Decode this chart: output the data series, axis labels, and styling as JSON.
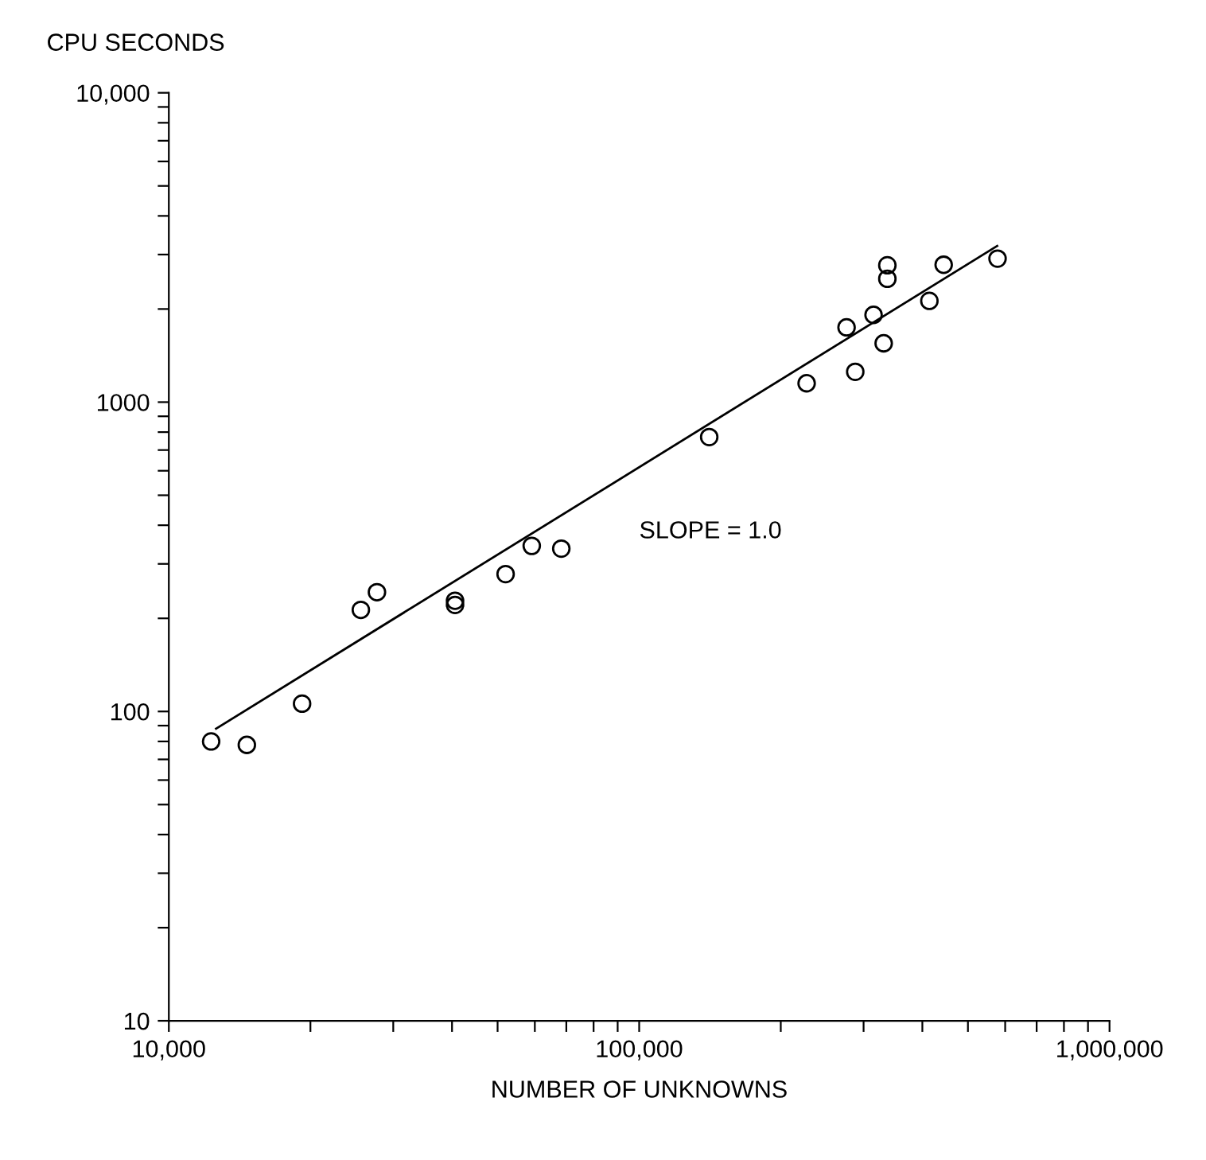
{
  "chart_data": {
    "type": "scatter",
    "xlabel": "NUMBER OF UNKNOWNS",
    "ylabel": "CPU SECONDS",
    "log": "xy",
    "grid": false,
    "legend": false,
    "marker": "circle",
    "xlim": [
      10000,
      1000000
    ],
    "ylim": [
      10,
      10000
    ],
    "xticks": [
      {
        "value": 10000,
        "label": "10,000"
      },
      {
        "value": 20000,
        "label": null
      },
      {
        "value": 30000,
        "label": null
      },
      {
        "value": 40000,
        "label": null
      },
      {
        "value": 50000,
        "label": null
      },
      {
        "value": 60000,
        "label": null
      },
      {
        "value": 70000,
        "label": null
      },
      {
        "value": 80000,
        "label": null
      },
      {
        "value": 90000,
        "label": null
      },
      {
        "value": 100000,
        "label": "100,000"
      },
      {
        "value": 200000,
        "label": null
      },
      {
        "value": 300000,
        "label": null
      },
      {
        "value": 400000,
        "label": null
      },
      {
        "value": 500000,
        "label": null
      },
      {
        "value": 600000,
        "label": null
      },
      {
        "value": 700000,
        "label": null
      },
      {
        "value": 800000,
        "label": null
      },
      {
        "value": 900000,
        "label": null
      },
      {
        "value": 1000000,
        "label": "1,000,000"
      }
    ],
    "yticks": [
      10,
      {
        "value": 20,
        "label": null
      },
      {
        "value": 30,
        "label": null
      },
      {
        "value": 40,
        "label": null
      },
      {
        "value": 50,
        "label": null
      },
      {
        "value": 60,
        "label": null
      },
      {
        "value": 70,
        "label": null
      },
      {
        "value": 80,
        "label": null
      },
      {
        "value": 90,
        "label": null
      },
      100,
      {
        "value": 200,
        "label": null
      },
      {
        "value": 300,
        "label": null
      },
      {
        "value": 400,
        "label": null
      },
      {
        "value": 500,
        "label": null
      },
      {
        "value": 600,
        "label": null
      },
      {
        "value": 700,
        "label": null
      },
      {
        "value": 800,
        "label": null
      },
      {
        "value": 900,
        "label": null
      },
      1000,
      {
        "value": 2000,
        "label": null
      },
      {
        "value": 3000,
        "label": null
      },
      {
        "value": 4000,
        "label": null
      },
      {
        "value": 5000,
        "label": null
      },
      {
        "value": 6000,
        "label": null
      },
      {
        "value": 7000,
        "label": null
      },
      {
        "value": 8000,
        "label": null
      },
      {
        "value": 9000,
        "label": null
      },
      {
        "value": 10000,
        "label": "10,000"
      }
    ],
    "annotations": [
      "SLOPE = 1.0"
    ],
    "series": [
      {
        "color": "#000000",
        "x": [
          12300,
          14650,
          19200,
          25600,
          27700,
          40600,
          40600,
          52000,
          59100,
          68300,
          140900,
          227000,
          288000,
          276000,
          315000,
          331000,
          337000,
          337000,
          414000,
          444000,
          578000
        ],
        "values": [
          80,
          78,
          106,
          213,
          243,
          228,
          221,
          278,
          343,
          336,
          771,
          1151,
          1253,
          1745,
          1915,
          1550,
          2770,
          2505,
          2125,
          2780,
          2910
        ]
      },
      {
        "type": "line",
        "color": "#000000",
        "marker": "none",
        "line_style": "solid",
        "x": [
          12600,
          577000
        ],
        "values": [
          88,
          3200
        ]
      }
    ]
  }
}
